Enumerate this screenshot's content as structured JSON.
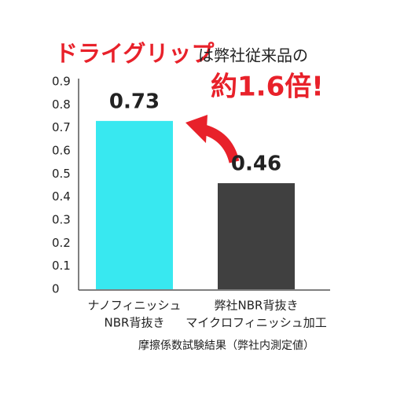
{
  "chart_data": {
    "type": "bar",
    "title_highlight": "ドライグリップ",
    "title_rest": "は弊社従来品の",
    "annotation": "約1.6倍!",
    "categories": [
      [
        "ナノフィニッシュ",
        "NBR背抜き"
      ],
      [
        "弊社NBR背抜き",
        "マイクロフィニッシュ加工"
      ]
    ],
    "values": [
      0.73,
      0.46
    ],
    "colors": [
      "#38e8f0",
      "#404040"
    ],
    "accent_color": "#e8212a",
    "ylim": [
      0,
      0.9
    ],
    "yticks": [
      0,
      0.1,
      0.2,
      0.3,
      0.4,
      0.5,
      0.6,
      0.7,
      0.8,
      0.9
    ],
    "grid": false,
    "note": "摩擦係数試験結果（弊社内測定値）"
  }
}
